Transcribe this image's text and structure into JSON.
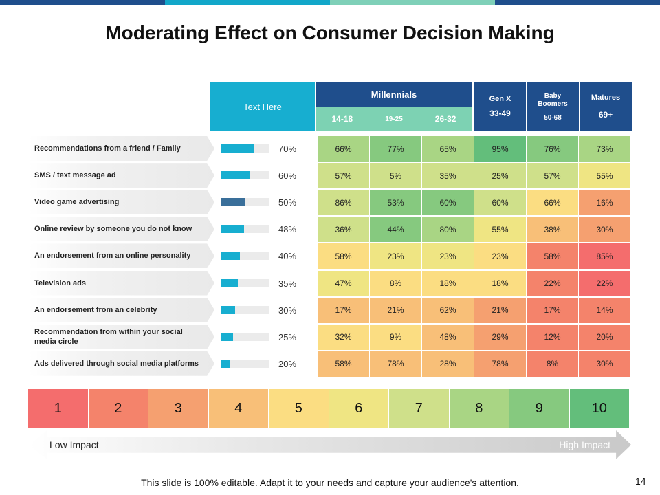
{
  "slide": {
    "title": "Moderating Effect on Consumer Decision Making",
    "footer": "This slide is 100% editable. Adapt it to your needs and capture your audience's attention.",
    "page_number": "14"
  },
  "colors": {
    "topbar": [
      "#1f4e8c",
      "#12a7c9",
      "#7fd0b8",
      "#1f4e8c"
    ],
    "teal": "#17aed0",
    "navy": "#1f4e8c",
    "mint": "#7dd2b3",
    "bar_default": "#17aed0",
    "bar_highlight": "#3a6f9a"
  },
  "header": {
    "text_here": "Text Here",
    "millennials": "Millennials",
    "mill_ages": [
      "14-18",
      "19-25",
      "26-32"
    ],
    "genx_label": "Gen X",
    "genx_age": "33-49",
    "boomers_label": "Baby Boomers",
    "boomers_age": "50-68",
    "matures_label": "Matures",
    "matures_age": "69+"
  },
  "rows": [
    {
      "label": "Recommendations from a friend / Family",
      "pct_label": "70%",
      "pct": 0.7,
      "values": [
        "66%",
        "77%",
        "65%",
        "95%",
        "76%",
        "73%"
      ],
      "scores": [
        8,
        9,
        8,
        10,
        9,
        8
      ]
    },
    {
      "label": "SMS / text message ad",
      "pct_label": "60%",
      "pct": 0.6,
      "values": [
        "57%",
        "5%",
        "35%",
        "25%",
        "57%",
        "55%"
      ],
      "scores": [
        7,
        7,
        7,
        7,
        7,
        6
      ]
    },
    {
      "label": "Video game advertising",
      "pct_label": "50%",
      "pct": 0.5,
      "values": [
        "86%",
        "53%",
        "60%",
        "60%",
        "66%",
        "16%"
      ],
      "scores": [
        7,
        9,
        9,
        7,
        5,
        3
      ]
    },
    {
      "label": "Online review by someone you do not know",
      "pct_label": "48%",
      "pct": 0.48,
      "values": [
        "36%",
        "44%",
        "80%",
        "55%",
        "38%",
        "30%"
      ],
      "scores": [
        7,
        9,
        8,
        6,
        4,
        3
      ]
    },
    {
      "label": "An endorsement from an online personality",
      "pct_label": "40%",
      "pct": 0.4,
      "values": [
        "58%",
        "23%",
        "23%",
        "23%",
        "58%",
        "85%"
      ],
      "scores": [
        5,
        6,
        6,
        5,
        2,
        1
      ]
    },
    {
      "label": "Television ads",
      "pct_label": "35%",
      "pct": 0.35,
      "values": [
        "47%",
        "8%",
        "18%",
        "18%",
        "22%",
        "22%"
      ],
      "scores": [
        6,
        5,
        5,
        5,
        2,
        1
      ]
    },
    {
      "label": "An endorsement from an celebrity",
      "pct_label": "30%",
      "pct": 0.3,
      "values": [
        "17%",
        "21%",
        "62%",
        "21%",
        "17%",
        "14%"
      ],
      "scores": [
        4,
        4,
        4,
        3,
        2,
        2
      ]
    },
    {
      "label": "Recommendation from within your social media circle",
      "pct_label": "25%",
      "pct": 0.25,
      "values": [
        "32%",
        "9%",
        "48%",
        "29%",
        "12%",
        "20%"
      ],
      "scores": [
        5,
        5,
        4,
        3,
        2,
        2
      ]
    },
    {
      "label": "Ads delivered through social media platforms",
      "pct_label": "20%",
      "pct": 0.2,
      "values": [
        "58%",
        "78%",
        "28%",
        "78%",
        "8%",
        "30%"
      ],
      "scores": [
        4,
        4,
        4,
        3,
        2,
        2
      ]
    }
  ],
  "scale": {
    "labels": [
      "1",
      "2",
      "3",
      "4",
      "5",
      "6",
      "7",
      "8",
      "9",
      "10"
    ],
    "colors": [
      "#f46d6d",
      "#f4836b",
      "#f5a070",
      "#f8bf78",
      "#fbdd82",
      "#efe583",
      "#cfe08a",
      "#a9d584",
      "#86c97f",
      "#63be7b"
    ],
    "low_label": "Low Impact",
    "high_label": "High Impact"
  }
}
